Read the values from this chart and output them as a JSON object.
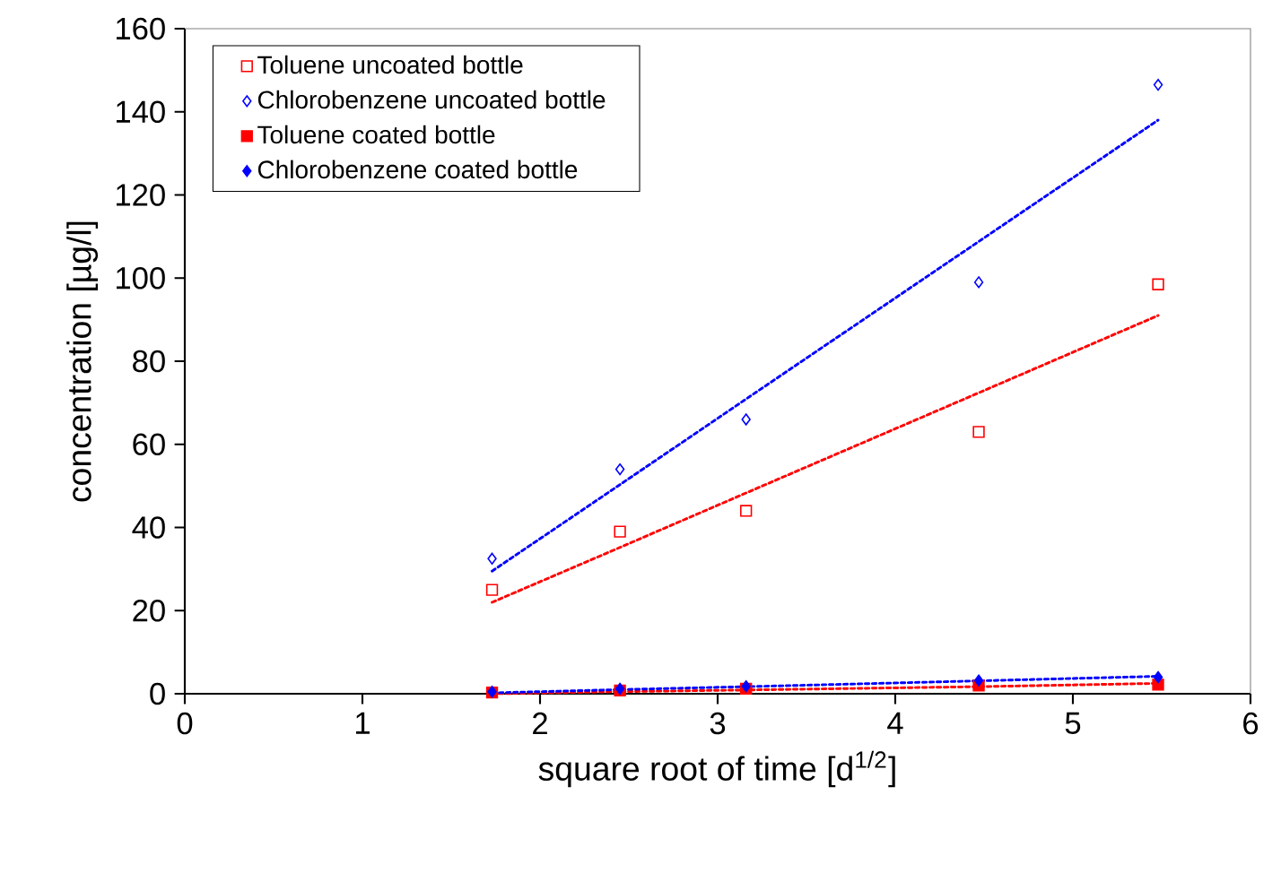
{
  "chart_data": {
    "type": "scatter",
    "xlabel": "square root of time  [d$^{1/2}$]",
    "ylabel": "concentration [µg/l]",
    "x": [
      1.73,
      2.45,
      3.16,
      4.47,
      5.48
    ],
    "xlim": [
      0,
      6
    ],
    "xticks": [
      0,
      1,
      2,
      3,
      4,
      5,
      6
    ],
    "ylim": [
      0,
      160
    ],
    "yticks": [
      0,
      20,
      40,
      60,
      80,
      100,
      120,
      140,
      160
    ],
    "grid": false,
    "legend": "top left",
    "series": [
      {
        "name": "Toluene uncoated bottle",
        "color": "#ff0000",
        "marker": "square",
        "values": [
          25,
          39,
          44,
          63,
          98.5
        ]
      },
      {
        "name": "Chlorobenzene uncoated bottle",
        "color": "#0000ff",
        "marker": "diamond",
        "values": [
          32.5,
          54,
          66,
          99,
          146.5
        ]
      },
      {
        "name": "Toluene coated bottle",
        "color": "#ff0000",
        "marker": "square",
        "values": [
          0.3,
          0.8,
          1.2,
          2,
          2.2
        ]
      },
      {
        "name": "Chlorobenzene coated bottle",
        "color": "#0000ff",
        "marker": "diamond",
        "values": [
          0.5,
          1.2,
          1.8,
          3.2,
          4
        ]
      },
      {
        "type": "line",
        "color": "#ff0000",
        "line_style": "dotted",
        "marker": "none",
        "values": [
          22,
          35.2,
          48.3,
          72.4,
          91
        ]
      },
      {
        "type": "line",
        "color": "#0000ff",
        "line_style": "dotted",
        "marker": "none",
        "values": [
          29.5,
          50.3,
          70.9,
          108.8,
          138
        ]
      },
      {
        "type": "line",
        "color": "#ff0000",
        "line_style": "dotted",
        "marker": "none",
        "values": [
          0,
          0.5,
          0.9,
          1.7,
          2.5
        ]
      },
      {
        "type": "line",
        "color": "#0000ff",
        "line_style": "dotted",
        "marker": "none",
        "values": [
          0.2,
          1,
          1.7,
          3.1,
          4.2
        ]
      }
    ]
  }
}
